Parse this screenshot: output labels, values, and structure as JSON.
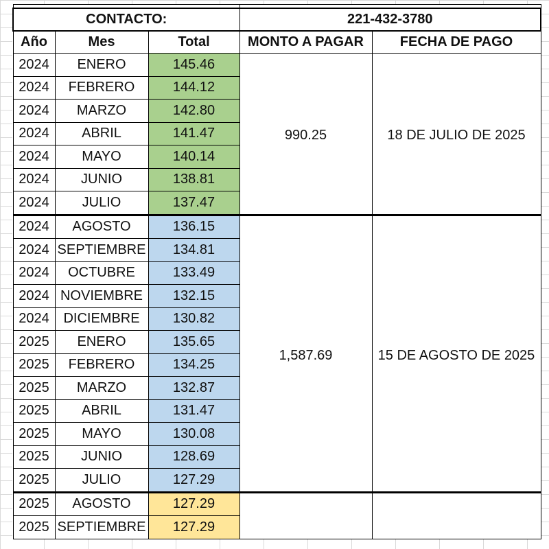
{
  "contact": {
    "label": "CONTACTO:",
    "value": "221-432-3780"
  },
  "headers": {
    "year": "Año",
    "month": "Mes",
    "total": "Total",
    "amount": "MONTO A PAGAR",
    "date": "FECHA DE PAGO"
  },
  "groups": [
    {
      "color": "#a9d08e",
      "amount": "990.25",
      "date": "18 DE JULIO DE 2025",
      "rows": [
        {
          "year": "2024",
          "month": "ENERO",
          "total": "145.46"
        },
        {
          "year": "2024",
          "month": "FEBRERO",
          "total": "144.12"
        },
        {
          "year": "2024",
          "month": "MARZO",
          "total": "142.80"
        },
        {
          "year": "2024",
          "month": "ABRIL",
          "total": "141.47"
        },
        {
          "year": "2024",
          "month": "MAYO",
          "total": "140.14"
        },
        {
          "year": "2024",
          "month": "JUNIO",
          "total": "138.81"
        },
        {
          "year": "2024",
          "month": "JULIO",
          "total": "137.47"
        }
      ]
    },
    {
      "color": "#bdd7ee",
      "amount": "1,587.69",
      "date": "15 DE AGOSTO DE 2025",
      "rows": [
        {
          "year": "2024",
          "month": "AGOSTO",
          "total": "136.15"
        },
        {
          "year": "2024",
          "month": "SEPTIEMBRE",
          "total": "134.81"
        },
        {
          "year": "2024",
          "month": "OCTUBRE",
          "total": "133.49"
        },
        {
          "year": "2024",
          "month": "NOVIEMBRE",
          "total": "132.15"
        },
        {
          "year": "2024",
          "month": "DICIEMBRE",
          "total": "130.82"
        },
        {
          "year": "2025",
          "month": "ENERO",
          "total": "135.65"
        },
        {
          "year": "2025",
          "month": "FEBRERO",
          "total": "134.25"
        },
        {
          "year": "2025",
          "month": "MARZO",
          "total": "132.87"
        },
        {
          "year": "2025",
          "month": "ABRIL",
          "total": "131.47"
        },
        {
          "year": "2025",
          "month": "MAYO",
          "total": "130.08"
        },
        {
          "year": "2025",
          "month": "JUNIO",
          "total": "128.69"
        },
        {
          "year": "2025",
          "month": "JULIO",
          "total": "127.29"
        }
      ]
    },
    {
      "color": "#ffe699",
      "amount": "",
      "date": "",
      "rows": [
        {
          "year": "2025",
          "month": "AGOSTO",
          "total": "127.29"
        },
        {
          "year": "2025",
          "month": "SEPTIEMBRE",
          "total": "127.29"
        }
      ]
    }
  ]
}
